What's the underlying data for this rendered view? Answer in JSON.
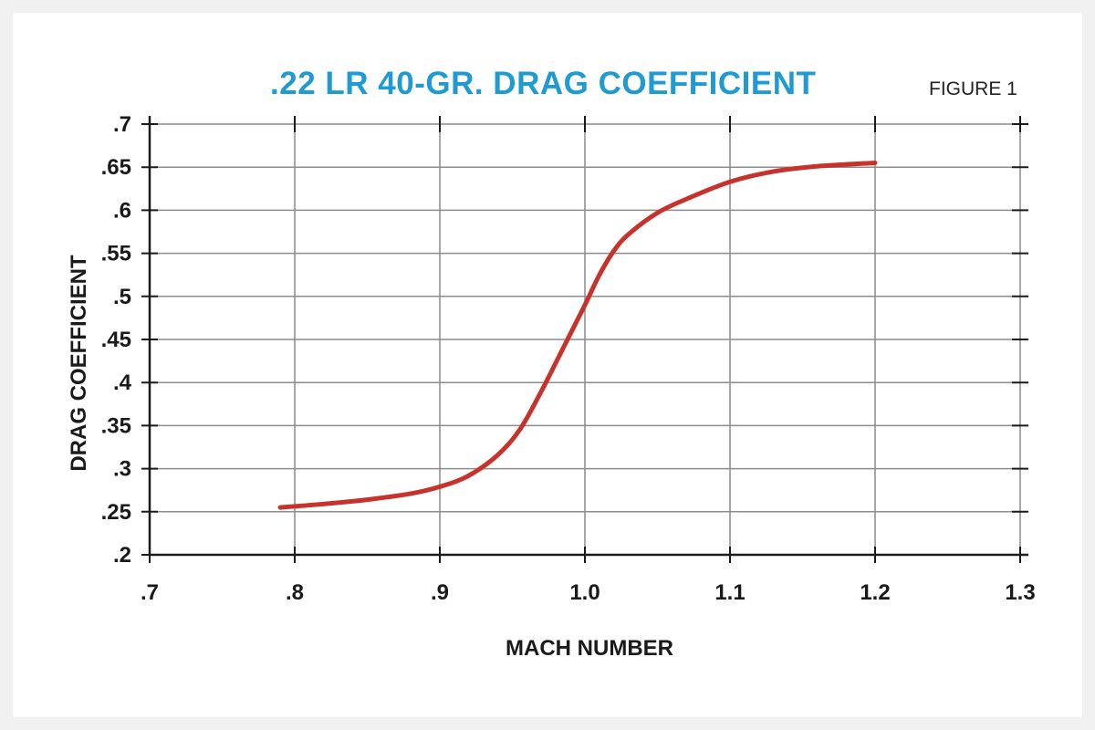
{
  "header": {
    "figure_label": "FIGURE 1"
  },
  "colors": {
    "title": "#1f9bd1",
    "curve": "#c8322c",
    "grid": "#8c8c8c",
    "axis": "#1a1a1a"
  },
  "chart_data": {
    "type": "line",
    "title": ".22 LR 40-GR. DRAG COEFFICIENT",
    "xlabel": "MACH NUMBER",
    "ylabel": "DRAG COEFFICIENT",
    "xlim": [
      0.7,
      1.3
    ],
    "ylim": [
      0.2,
      0.7
    ],
    "grid": true,
    "x_ticks": [
      0.7,
      0.8,
      0.9,
      1.0,
      1.1,
      1.2,
      1.3
    ],
    "x_tick_labels": [
      ".7",
      ".8",
      ".9",
      "1.0",
      "1.1",
      "1.2",
      "1.3"
    ],
    "y_ticks": [
      0.2,
      0.25,
      0.3,
      0.35,
      0.4,
      0.45,
      0.5,
      0.55,
      0.6,
      0.65,
      0.7
    ],
    "y_tick_labels": [
      ".2",
      ".25",
      ".3",
      ".35",
      ".4",
      ".45",
      ".5",
      ".55",
      ".6",
      ".65",
      ".7"
    ],
    "series": [
      {
        "x": [
          0.79,
          0.82,
          0.85,
          0.88,
          0.9,
          0.92,
          0.94,
          0.955,
          0.97,
          0.985,
          1.0,
          1.01,
          1.02,
          1.03,
          1.05,
          1.07,
          1.1,
          1.13,
          1.16,
          1.2
        ],
        "y": [
          0.255,
          0.259,
          0.264,
          0.271,
          0.279,
          0.292,
          0.316,
          0.345,
          0.39,
          0.44,
          0.49,
          0.525,
          0.553,
          0.572,
          0.597,
          0.613,
          0.633,
          0.645,
          0.651,
          0.655
        ]
      }
    ]
  }
}
